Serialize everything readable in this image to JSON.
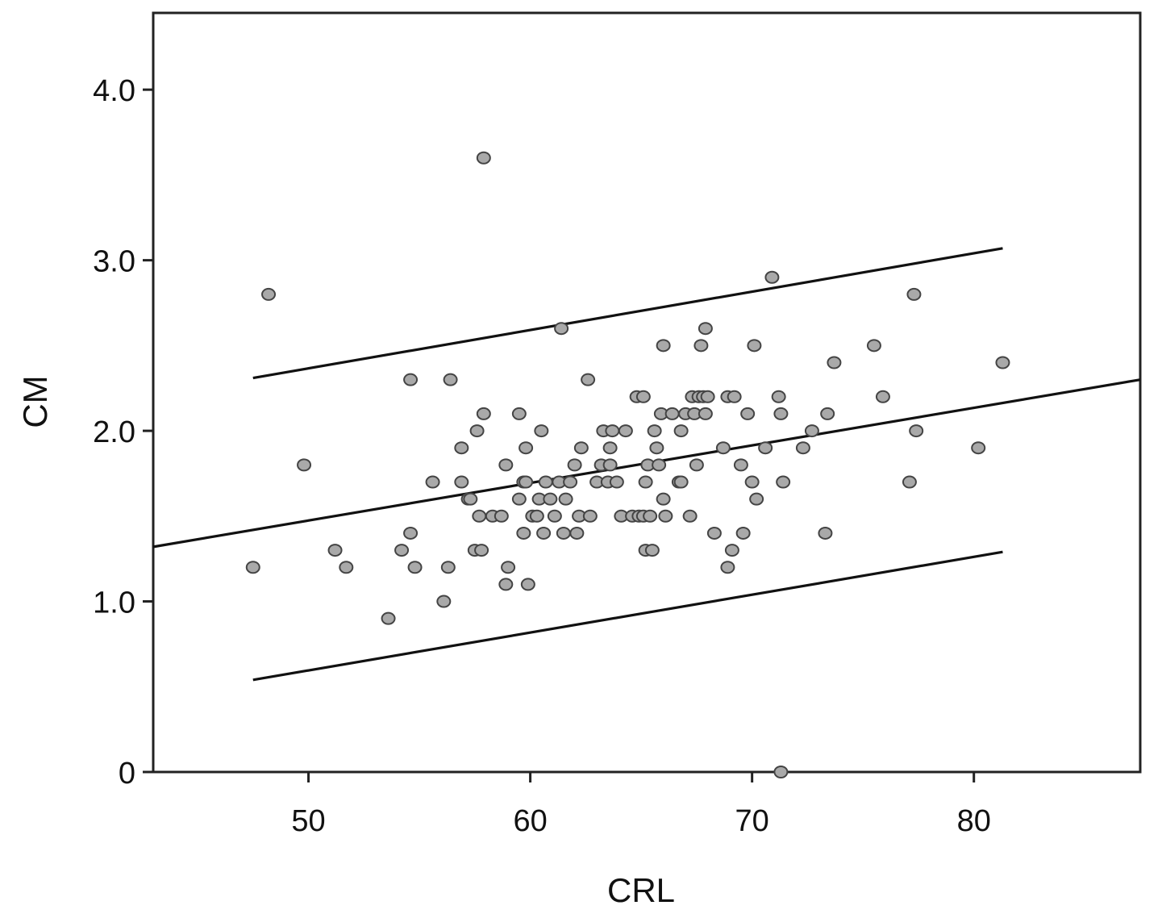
{
  "chart_data": {
    "type": "scatter",
    "title": "",
    "xlabel": "CRL",
    "ylabel": "CM",
    "xlim": [
      43,
      87.5
    ],
    "ylim": [
      0,
      4.45
    ],
    "xticks": [
      50,
      60,
      70,
      80
    ],
    "xtick_labels": [
      "50",
      "60",
      "70",
      "80"
    ],
    "yticks": [
      0,
      1,
      2,
      3,
      4
    ],
    "ytick_labels": [
      "0",
      "1.0",
      "2.0",
      "3.0",
      "4.0"
    ],
    "grid": false,
    "legend": "none",
    "lines": [
      {
        "x": [
          43,
          87.5
        ],
        "y": [
          1.32,
          2.3
        ]
      },
      {
        "x": [
          47.5,
          81.3
        ],
        "y": [
          2.31,
          3.07
        ]
      },
      {
        "x": [
          47.5,
          81.3
        ],
        "y": [
          0.54,
          1.29
        ]
      }
    ],
    "points": [
      [
        47.5,
        1.2
      ],
      [
        48.2,
        2.8
      ],
      [
        49.8,
        1.8
      ],
      [
        51.2,
        1.3
      ],
      [
        51.7,
        1.2
      ],
      [
        53.6,
        0.9
      ],
      [
        54.2,
        1.3
      ],
      [
        54.6,
        1.4
      ],
      [
        54.6,
        2.3
      ],
      [
        54.8,
        1.2
      ],
      [
        55.6,
        1.7
      ],
      [
        56.1,
        1.0
      ],
      [
        56.3,
        1.2
      ],
      [
        56.4,
        2.3
      ],
      [
        56.9,
        1.7
      ],
      [
        56.9,
        1.9
      ],
      [
        57.2,
        1.6
      ],
      [
        57.3,
        1.6
      ],
      [
        57.5,
        1.3
      ],
      [
        57.6,
        2.0
      ],
      [
        57.7,
        1.5
      ],
      [
        57.8,
        1.3
      ],
      [
        57.9,
        2.1
      ],
      [
        57.9,
        3.6
      ],
      [
        58.3,
        1.5
      ],
      [
        58.7,
        1.5
      ],
      [
        58.9,
        1.8
      ],
      [
        58.9,
        1.1
      ],
      [
        59.0,
        1.2
      ],
      [
        59.5,
        1.6
      ],
      [
        59.5,
        2.1
      ],
      [
        59.7,
        1.4
      ],
      [
        59.7,
        1.7
      ],
      [
        59.8,
        1.9
      ],
      [
        59.8,
        1.7
      ],
      [
        59.9,
        1.1
      ],
      [
        60.1,
        1.5
      ],
      [
        60.3,
        1.5
      ],
      [
        60.4,
        1.6
      ],
      [
        60.5,
        2.0
      ],
      [
        60.6,
        1.4
      ],
      [
        60.7,
        1.7
      ],
      [
        60.9,
        1.6
      ],
      [
        61.1,
        1.5
      ],
      [
        61.3,
        1.7
      ],
      [
        61.4,
        2.6
      ],
      [
        61.5,
        1.4
      ],
      [
        61.6,
        1.6
      ],
      [
        61.8,
        1.7
      ],
      [
        62.0,
        1.8
      ],
      [
        62.1,
        1.4
      ],
      [
        62.2,
        1.5
      ],
      [
        62.3,
        1.9
      ],
      [
        62.6,
        2.3
      ],
      [
        62.7,
        1.5
      ],
      [
        63.0,
        1.7
      ],
      [
        63.2,
        1.8
      ],
      [
        63.3,
        2.0
      ],
      [
        63.5,
        1.7
      ],
      [
        63.6,
        1.8
      ],
      [
        63.6,
        1.9
      ],
      [
        63.7,
        2.0
      ],
      [
        63.9,
        1.7
      ],
      [
        64.1,
        1.5
      ],
      [
        64.3,
        2.0
      ],
      [
        64.6,
        1.5
      ],
      [
        64.8,
        2.2
      ],
      [
        64.9,
        1.5
      ],
      [
        65.1,
        1.5
      ],
      [
        65.1,
        2.2
      ],
      [
        65.2,
        1.3
      ],
      [
        65.2,
        1.7
      ],
      [
        65.3,
        1.8
      ],
      [
        65.4,
        1.5
      ],
      [
        65.5,
        1.3
      ],
      [
        65.6,
        2.0
      ],
      [
        65.7,
        1.9
      ],
      [
        65.8,
        1.8
      ],
      [
        65.9,
        2.1
      ],
      [
        66.0,
        1.6
      ],
      [
        66.0,
        2.5
      ],
      [
        66.1,
        1.5
      ],
      [
        66.4,
        2.1
      ],
      [
        66.7,
        1.7
      ],
      [
        66.8,
        2.0
      ],
      [
        66.8,
        1.7
      ],
      [
        67.0,
        2.1
      ],
      [
        67.2,
        1.5
      ],
      [
        67.3,
        2.2
      ],
      [
        67.4,
        2.1
      ],
      [
        67.5,
        1.8
      ],
      [
        67.6,
        2.2
      ],
      [
        67.7,
        2.5
      ],
      [
        67.8,
        2.2
      ],
      [
        67.9,
        2.1
      ],
      [
        67.9,
        2.6
      ],
      [
        68.0,
        2.2
      ],
      [
        68.3,
        1.4
      ],
      [
        68.7,
        1.9
      ],
      [
        68.9,
        2.2
      ],
      [
        68.9,
        1.2
      ],
      [
        69.1,
        1.3
      ],
      [
        69.2,
        2.2
      ],
      [
        69.5,
        1.8
      ],
      [
        69.6,
        1.4
      ],
      [
        69.8,
        2.1
      ],
      [
        70.0,
        1.7
      ],
      [
        70.1,
        2.5
      ],
      [
        70.2,
        1.6
      ],
      [
        70.6,
        1.9
      ],
      [
        70.9,
        2.9
      ],
      [
        71.2,
        2.2
      ],
      [
        71.3,
        2.1
      ],
      [
        71.4,
        1.7
      ],
      [
        71.3,
        0.0
      ],
      [
        72.3,
        1.9
      ],
      [
        72.7,
        2.0
      ],
      [
        73.3,
        1.4
      ],
      [
        73.4,
        2.1
      ],
      [
        73.7,
        2.4
      ],
      [
        75.5,
        2.5
      ],
      [
        75.9,
        2.2
      ],
      [
        77.1,
        1.7
      ],
      [
        77.3,
        2.8
      ],
      [
        77.4,
        2.0
      ],
      [
        80.2,
        1.9
      ],
      [
        81.3,
        2.4
      ]
    ]
  }
}
